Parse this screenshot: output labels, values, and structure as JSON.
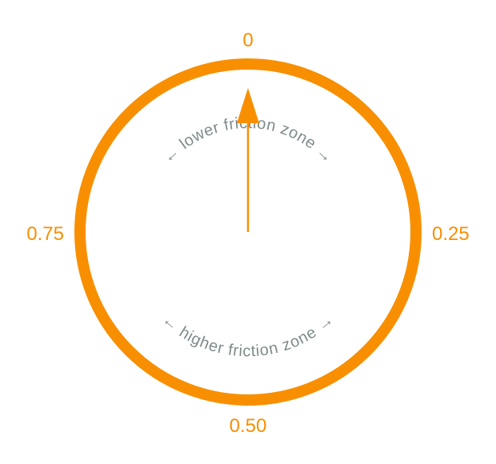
{
  "colors": {
    "ring": "#f88f00",
    "needle": "#f88f00",
    "tick_labels": "#f88f00",
    "zone_labels": "#7f8b8b",
    "background": "#ffffff"
  },
  "dial": {
    "tick_labels": {
      "top": "0",
      "right": "0.25",
      "bottom": "0.50",
      "left": "0.75"
    },
    "needle_value": 0
  },
  "zones": {
    "upper": "← lower friction zone →",
    "lower": "← higher friction zone →"
  }
}
